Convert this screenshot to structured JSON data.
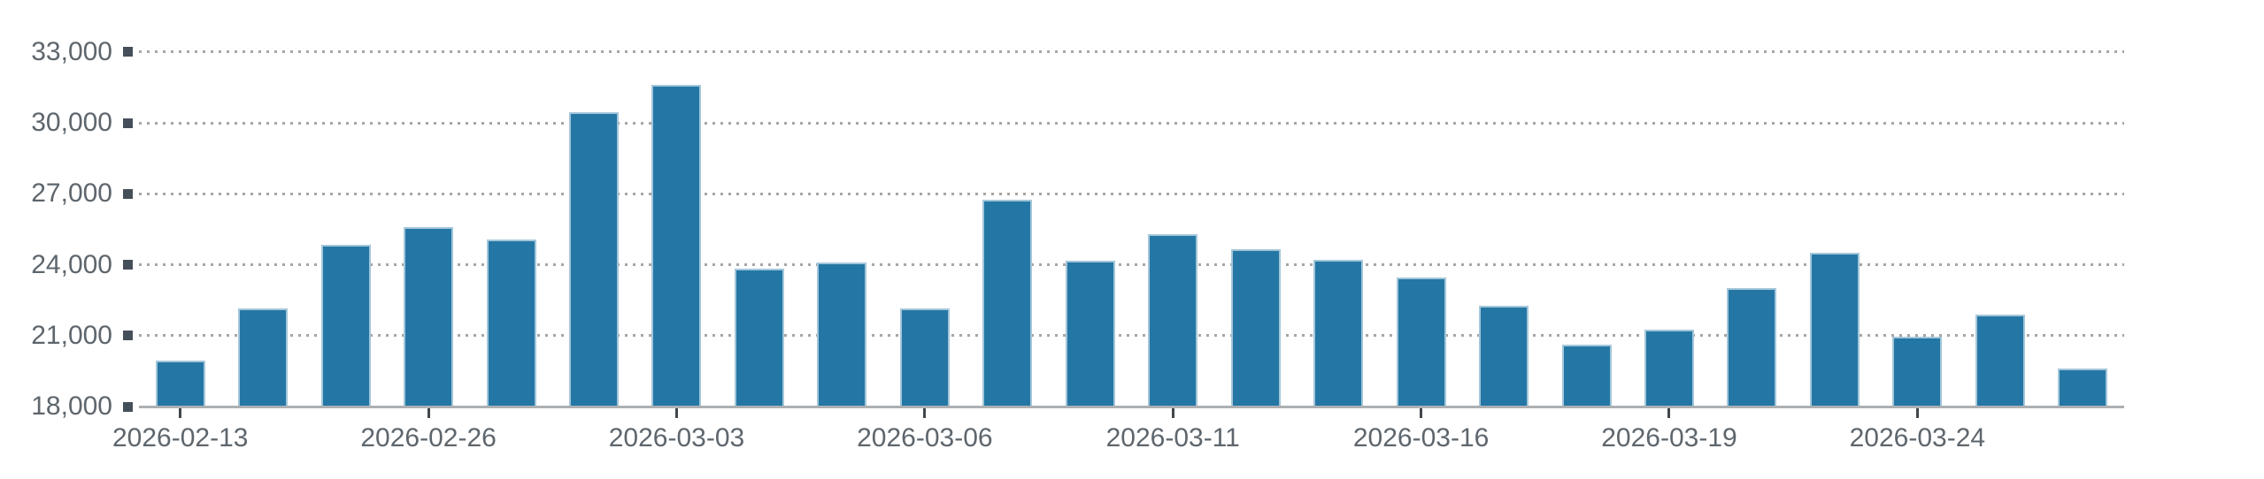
{
  "chart_data": {
    "type": "bar",
    "title": "",
    "xlabel": "",
    "ylabel": "",
    "n_bars": 24,
    "values": [
      19950,
      22150,
      24850,
      25600,
      25050,
      30450,
      31600,
      23850,
      24100,
      22150,
      26750,
      24150,
      25300,
      24650,
      24200,
      23450,
      22250,
      20600,
      21250,
      23000,
      24500,
      20950,
      21900,
      19600
    ],
    "x_tick_indices": [
      0,
      3,
      6,
      9,
      12,
      15,
      18,
      21
    ],
    "x_tick_labels": [
      "2026-02-13",
      "2026-02-26",
      "2026-03-03",
      "2026-03-06",
      "2026-03-11",
      "2026-03-16",
      "2026-03-19",
      "2026-03-24"
    ],
    "y_tick_values": [
      18000,
      21000,
      24000,
      27000,
      30000,
      33000
    ],
    "y_tick_labels": [
      "18,000",
      "21,000",
      "24,000",
      "27,000",
      "30,000",
      "33,000"
    ],
    "ylim": [
      18000,
      33000
    ],
    "grid": "horizontal-dotted",
    "legend_position": "none",
    "colors": {
      "background": "#ffffff",
      "bar_fill": "#2477a4",
      "bar_stroke": "#a3c6da",
      "gridline": "#a6a6a6",
      "axis_line": "#adb0b3",
      "x_tick_mark": "#42474c",
      "y_tick_square": "#454f59",
      "label_text": "#5e666d"
    }
  }
}
